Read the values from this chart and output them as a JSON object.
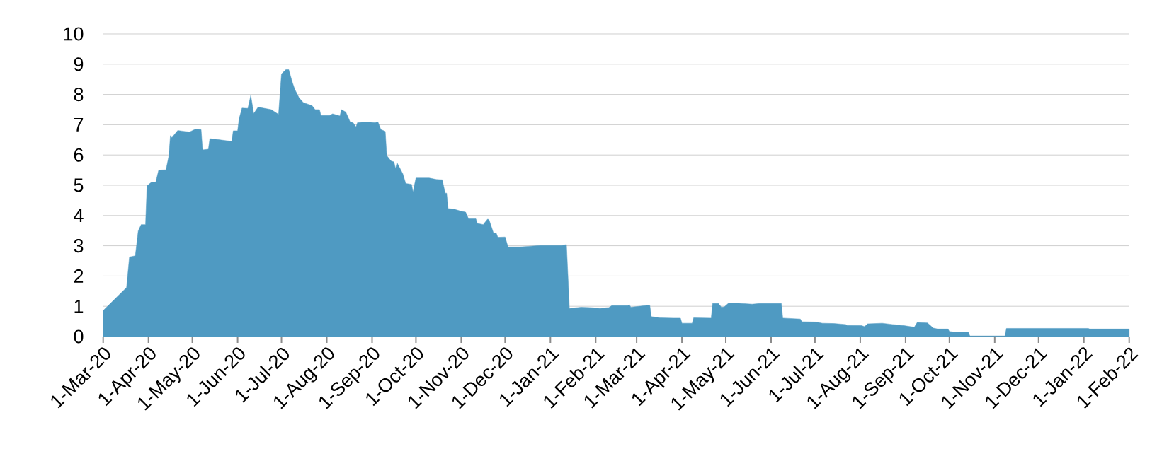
{
  "chart_data": {
    "type": "area",
    "color": "#4f9ac2",
    "grid": "y",
    "x": [
      "2020-03-01",
      "2020-03-17",
      "2020-03-19",
      "2020-03-23",
      "2020-03-25",
      "2020-03-27",
      "2020-03-30",
      "2020-03-31",
      "2020-04-03",
      "2020-04-06",
      "2020-04-08",
      "2020-04-13",
      "2020-04-15",
      "2020-04-16",
      "2020-04-17",
      "2020-04-21",
      "2020-04-29",
      "2020-05-03",
      "2020-05-07",
      "2020-05-08",
      "2020-05-12",
      "2020-05-13",
      "2020-05-20",
      "2020-05-28",
      "2020-05-29",
      "2020-06-01",
      "2020-06-02",
      "2020-06-04",
      "2020-06-08",
      "2020-06-10",
      "2020-06-12",
      "2020-06-15",
      "2020-06-24",
      "2020-06-29",
      "2020-07-01",
      "2020-07-04",
      "2020-07-06",
      "2020-07-08",
      "2020-07-10",
      "2020-07-13",
      "2020-07-16",
      "2020-07-22",
      "2020-07-24",
      "2020-07-27",
      "2020-07-28",
      "2020-08-03",
      "2020-08-05",
      "2020-08-10",
      "2020-08-11",
      "2020-08-14",
      "2020-08-17",
      "2020-08-19",
      "2020-08-21",
      "2020-08-22",
      "2020-08-28",
      "2020-09-03",
      "2020-09-05",
      "2020-09-07",
      "2020-09-10",
      "2020-09-11",
      "2020-09-14",
      "2020-09-16",
      "2020-09-17",
      "2020-09-18",
      "2020-09-22",
      "2020-09-24",
      "2020-09-28",
      "2020-09-29",
      "2020-10-01",
      "2020-10-10",
      "2020-10-15",
      "2020-10-19",
      "2020-10-21",
      "2020-10-22",
      "2020-10-23",
      "2020-10-27",
      "2020-11-01",
      "2020-11-04",
      "2020-11-06",
      "2020-11-11",
      "2020-11-12",
      "2020-11-16",
      "2020-11-19",
      "2020-11-20",
      "2020-11-23",
      "2020-11-25",
      "2020-11-26",
      "2020-12-01",
      "2020-12-03",
      "2020-12-11",
      "2020-12-17",
      "2020-12-25",
      "2021-01-09",
      "2021-01-12",
      "2021-01-14",
      "2021-01-22",
      "2021-01-28",
      "2021-02-04",
      "2021-02-10",
      "2021-02-12",
      "2021-02-23",
      "2021-02-24",
      "2021-02-25",
      "2021-03-10",
      "2021-03-11",
      "2021-03-17",
      "2021-03-26",
      "2021-03-31",
      "2021-04-01",
      "2021-04-08",
      "2021-04-09",
      "2021-04-21",
      "2021-04-22",
      "2021-04-26",
      "2021-04-28",
      "2021-04-30",
      "2021-05-03",
      "2021-05-10",
      "2021-05-19",
      "2021-05-24",
      "2021-06-08",
      "2021-06-09",
      "2021-06-21",
      "2021-06-22",
      "2021-07-02",
      "2021-07-06",
      "2021-07-14",
      "2021-07-22",
      "2021-07-23",
      "2021-08-02",
      "2021-08-04",
      "2021-08-06",
      "2021-08-16",
      "2021-08-23",
      "2021-08-31",
      "2021-09-07",
      "2021-09-09",
      "2021-09-16",
      "2021-09-20",
      "2021-09-23",
      "2021-09-30",
      "2021-10-01",
      "2021-10-05",
      "2021-10-14",
      "2021-10-15",
      "2021-11-08",
      "2021-11-09",
      "2022-01-04",
      "2022-01-05",
      "2022-02-01"
    ],
    "values": [
      0.86,
      1.62,
      2.63,
      2.67,
      3.49,
      3.7,
      3.7,
      4.98,
      5.1,
      5.1,
      5.5,
      5.51,
      5.98,
      6.64,
      6.57,
      6.81,
      6.76,
      6.85,
      6.84,
      6.17,
      6.19,
      6.54,
      6.5,
      6.45,
      6.8,
      6.8,
      7.19,
      7.55,
      7.54,
      7.97,
      7.37,
      7.58,
      7.5,
      7.34,
      8.68,
      8.82,
      8.82,
      8.47,
      8.18,
      7.89,
      7.73,
      7.63,
      7.5,
      7.5,
      7.31,
      7.31,
      7.36,
      7.29,
      7.5,
      7.42,
      7.09,
      7.07,
      6.93,
      7.07,
      7.09,
      7.07,
      7.09,
      6.84,
      6.78,
      5.98,
      5.8,
      5.77,
      5.55,
      5.75,
      5.38,
      5.06,
      5.03,
      4.77,
      5.24,
      5.24,
      5.19,
      5.18,
      4.74,
      4.74,
      4.23,
      4.21,
      4.14,
      4.11,
      3.89,
      3.89,
      3.74,
      3.7,
      3.88,
      3.86,
      3.43,
      3.41,
      3.28,
      3.29,
      2.96,
      2.96,
      2.98,
      3.01,
      3.01,
      3.04,
      0.93,
      0.97,
      0.96,
      0.93,
      0.96,
      1.02,
      1.02,
      1.06,
      0.97,
      1.04,
      0.66,
      0.62,
      0.61,
      0.61,
      0.44,
      0.44,
      0.62,
      0.61,
      1.09,
      1.09,
      0.97,
      0.98,
      1.11,
      1.1,
      1.07,
      1.09,
      1.09,
      0.61,
      0.58,
      0.49,
      0.48,
      0.44,
      0.43,
      0.4,
      0.37,
      0.36,
      0.33,
      0.42,
      0.44,
      0.4,
      0.36,
      0.31,
      0.47,
      0.45,
      0.28,
      0.25,
      0.25,
      0.17,
      0.14,
      0.14,
      0.02,
      0.02,
      0.27,
      0.27,
      0.25,
      0.25
    ],
    "xlim": [
      "2020-03-01",
      "2022-02-01"
    ],
    "xticks": [
      {
        "value": "2020-03-01",
        "label": "1-Mar-20"
      },
      {
        "value": "2020-04-01",
        "label": "1-Apr-20"
      },
      {
        "value": "2020-05-01",
        "label": "1-May-20"
      },
      {
        "value": "2020-06-01",
        "label": "1-Jun-20"
      },
      {
        "value": "2020-07-01",
        "label": "1-Jul-20"
      },
      {
        "value": "2020-08-01",
        "label": "1-Aug-20"
      },
      {
        "value": "2020-09-01",
        "label": "1-Sep-20"
      },
      {
        "value": "2020-10-01",
        "label": "1-Oct-20"
      },
      {
        "value": "2020-11-01",
        "label": "1-Nov-20"
      },
      {
        "value": "2020-12-01",
        "label": "1-Dec-20"
      },
      {
        "value": "2021-01-01",
        "label": "1-Jan-21"
      },
      {
        "value": "2021-02-01",
        "label": "1-Feb-21"
      },
      {
        "value": "2021-03-01",
        "label": "1-Mar-21"
      },
      {
        "value": "2021-04-01",
        "label": "1-Apr-21"
      },
      {
        "value": "2021-05-01",
        "label": "1-May-21"
      },
      {
        "value": "2021-06-01",
        "label": "1-Jun-21"
      },
      {
        "value": "2021-07-01",
        "label": "1-Jul-21"
      },
      {
        "value": "2021-08-01",
        "label": "1-Aug-21"
      },
      {
        "value": "2021-09-01",
        "label": "1-Sep-21"
      },
      {
        "value": "2021-10-01",
        "label": "1-Oct-21"
      },
      {
        "value": "2021-11-01",
        "label": "1-Nov-21"
      },
      {
        "value": "2021-12-01",
        "label": "1-Dec-21"
      },
      {
        "value": "2022-01-01",
        "label": "1-Jan-22"
      },
      {
        "value": "2022-02-01",
        "label": "1-Feb-22"
      }
    ],
    "ylim": [
      0,
      10
    ],
    "yticks": [
      0,
      1,
      2,
      3,
      4,
      5,
      6,
      7,
      8,
      9,
      10
    ]
  }
}
